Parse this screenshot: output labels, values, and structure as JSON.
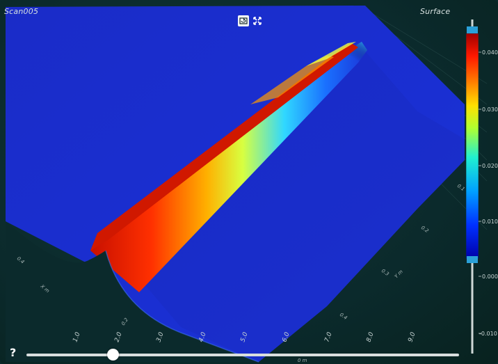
{
  "viewer": {
    "scan_name": "Scan005",
    "mode_label": "Surface",
    "help_label": "?"
  },
  "toolbar": {
    "reset_icon": "reset-view-icon",
    "fullscreen_icon": "fullscreen-icon"
  },
  "x_axis": {
    "ticks": [
      "1.0",
      "2.0",
      "3.0",
      "4.0",
      "5.0",
      "6.0",
      "7.0",
      "8.0",
      "9.0"
    ],
    "unit_label": "0 m"
  },
  "y_axis": {
    "ticks": [
      "0.1",
      "0.2",
      "0.3",
      "0.4"
    ],
    "unit_label": "Y m"
  },
  "left_axis": {
    "ticks": [
      "0.4",
      "0.2"
    ],
    "unit_label": "X m"
  },
  "colorbar": {
    "ticks": [
      "0.040",
      "0.030",
      "0.020",
      "0.010",
      "0.000",
      "-0.010"
    ],
    "colors": [
      "#0000a8",
      "#0040ff",
      "#00c8ff",
      "#40ff80",
      "#f0ff00",
      "#ff9000",
      "#ff2000",
      "#b00000"
    ],
    "handle_color": "#2aa0d8"
  },
  "surface_colors": {
    "base": "#1b2fd0",
    "ridge_high": "#e01000",
    "ridge_mid": "#ffd000",
    "ridge_low": "#30c0ff"
  },
  "slider": {
    "value_fraction": 0.2
  }
}
